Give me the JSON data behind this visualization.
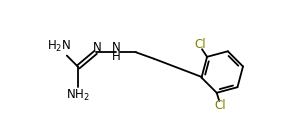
{
  "bg_color": "#ffffff",
  "line_color": "#000000",
  "text_color": "#000000",
  "cl_color": "#808000",
  "bond_lw": 1.3,
  "font_size": 8.5,
  "figsize": [
    3.03,
    1.39
  ],
  "dpi": 100,
  "xlim": [
    0,
    9.5
  ],
  "ylim": [
    0,
    5.5
  ]
}
